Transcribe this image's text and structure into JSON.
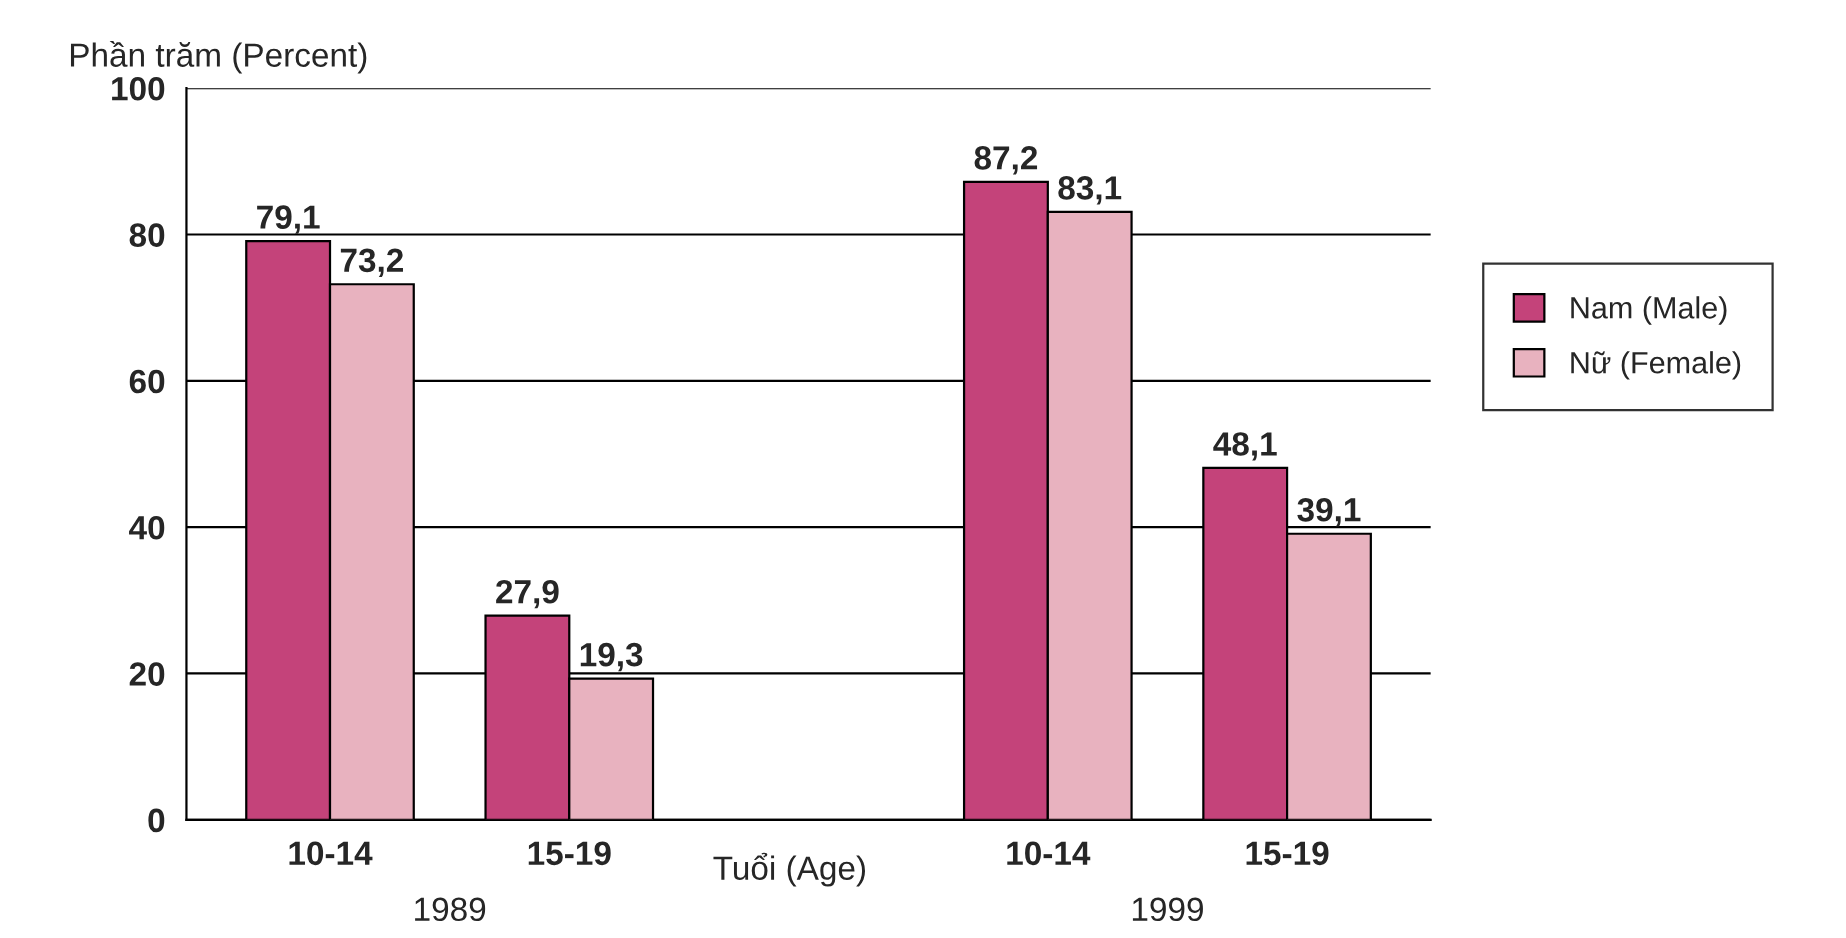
{
  "chart_data": {
    "type": "bar",
    "ylabel": "Phần trăm (Percent)",
    "xlabel": "Tuổi (Age)",
    "categories": [
      "10-14",
      "15-19",
      null,
      "10-14",
      "15-19"
    ],
    "series": [
      {
        "name": "Nam (Male)",
        "color": "#c4437a",
        "values": [
          79.1,
          27.9,
          null,
          87.2,
          48.1
        ],
        "value_labels": [
          "79,1",
          "27,9",
          null,
          "87,2",
          "48,1"
        ]
      },
      {
        "name": "Nữ (Female)",
        "color": "#e8b2bf",
        "values": [
          73.2,
          19.3,
          null,
          83.1,
          39.1
        ],
        "value_labels": [
          "73,2",
          "19,3",
          null,
          "83,1",
          "39,1"
        ]
      }
    ],
    "annotations": [
      "1989",
      "1999"
    ],
    "ylim": [
      0,
      100
    ],
    "yticks": [
      0,
      20,
      40,
      60,
      80,
      100
    ],
    "grid": "y",
    "legend": "right"
  }
}
